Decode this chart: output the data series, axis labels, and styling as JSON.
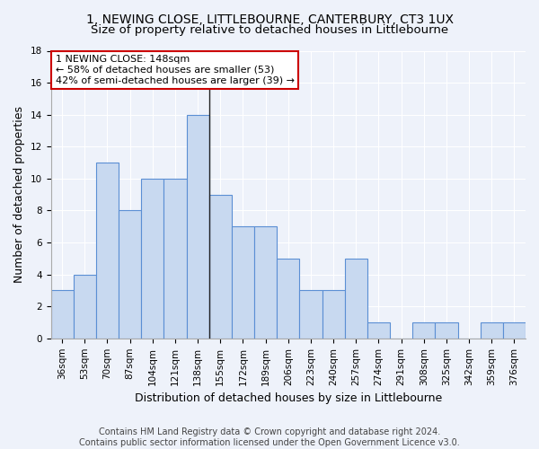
{
  "title1": "1, NEWING CLOSE, LITTLEBOURNE, CANTERBURY, CT3 1UX",
  "title2": "Size of property relative to detached houses in Littlebourne",
  "xlabel": "Distribution of detached houses by size in Littlebourne",
  "ylabel": "Number of detached properties",
  "categories": [
    "36sqm",
    "53sqm",
    "70sqm",
    "87sqm",
    "104sqm",
    "121sqm",
    "138sqm",
    "155sqm",
    "172sqm",
    "189sqm",
    "206sqm",
    "223sqm",
    "240sqm",
    "257sqm",
    "274sqm",
    "291sqm",
    "308sqm",
    "325sqm",
    "342sqm",
    "359sqm",
    "376sqm"
  ],
  "values": [
    3,
    4,
    11,
    8,
    10,
    10,
    14,
    9,
    7,
    7,
    5,
    3,
    3,
    5,
    1,
    0,
    1,
    1,
    0,
    1,
    1
  ],
  "bar_color": "#c8d9f0",
  "bar_edge_color": "#5b8fd4",
  "highlight_index": 6,
  "highlight_line_color": "#222222",
  "annotation_line1": "1 NEWING CLOSE: 148sqm",
  "annotation_line2": "← 58% of detached houses are smaller (53)",
  "annotation_line3": "42% of semi-detached houses are larger (39) →",
  "annotation_box_color": "#ffffff",
  "annotation_box_edge_color": "#cc0000",
  "footer": "Contains HM Land Registry data © Crown copyright and database right 2024.\nContains public sector information licensed under the Open Government Licence v3.0.",
  "ylim": [
    0,
    18
  ],
  "yticks": [
    0,
    2,
    4,
    6,
    8,
    10,
    12,
    14,
    16,
    18
  ],
  "background_color": "#eef2fa",
  "grid_color": "#ffffff",
  "title1_fontsize": 10,
  "title2_fontsize": 9.5,
  "axis_label_fontsize": 9,
  "tick_fontsize": 7.5,
  "footer_fontsize": 7,
  "annotation_fontsize": 8
}
